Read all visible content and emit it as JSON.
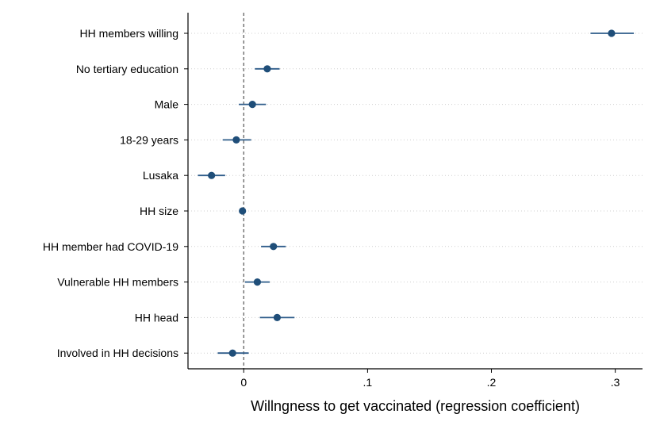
{
  "chart_data": {
    "type": "scatter",
    "subtype": "coefficient-plot",
    "title": "",
    "xlabel": "Willngness to get vaccinated (regression coefficient)",
    "ylabel": "",
    "xlim": [
      -0.045,
      0.322
    ],
    "xticks": [
      0,
      0.1,
      0.2,
      0.3
    ],
    "xtick_labels": [
      "0",
      ".1",
      ".2",
      ".3"
    ],
    "reference_line_x": 0,
    "grid": "horizontal-dotted",
    "legend": "none",
    "marker_color": "#1f4e79",
    "ci_color": "#2e5c8a",
    "categories": [
      "HH members willing",
      "No tertiary education",
      "Male",
      "18-29 years",
      "Lusaka",
      "HH size",
      "HH member had COVID-19",
      "Vulnerable HH members",
      "HH head",
      "Involved in HH decisions"
    ],
    "points": [
      {
        "label": "HH members willing",
        "estimate": 0.297,
        "ci_low": 0.28,
        "ci_high": 0.315
      },
      {
        "label": "No tertiary education",
        "estimate": 0.019,
        "ci_low": 0.009,
        "ci_high": 0.029
      },
      {
        "label": "Male",
        "estimate": 0.007,
        "ci_low": -0.004,
        "ci_high": 0.018
      },
      {
        "label": "18-29 years",
        "estimate": -0.006,
        "ci_low": -0.017,
        "ci_high": 0.006
      },
      {
        "label": "Lusaka",
        "estimate": -0.026,
        "ci_low": -0.037,
        "ci_high": -0.015
      },
      {
        "label": "HH size",
        "estimate": -0.001,
        "ci_low": -0.003,
        "ci_high": 0.001
      },
      {
        "label": "HH member had COVID-19",
        "estimate": 0.024,
        "ci_low": 0.014,
        "ci_high": 0.034
      },
      {
        "label": "Vulnerable HH members",
        "estimate": 0.011,
        "ci_low": 0.001,
        "ci_high": 0.021
      },
      {
        "label": "HH head",
        "estimate": 0.027,
        "ci_low": 0.013,
        "ci_high": 0.041
      },
      {
        "label": "Involved in HH decisions",
        "estimate": -0.009,
        "ci_low": -0.021,
        "ci_high": 0.004
      }
    ]
  }
}
